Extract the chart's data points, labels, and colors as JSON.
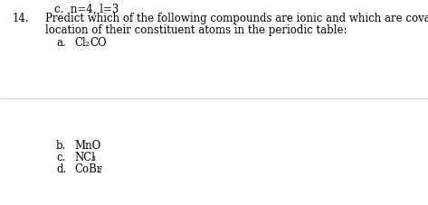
{
  "bg_color": "#ffffff",
  "line_color": "#d0d0d0",
  "text_color": "#000000",
  "top_partial": "c.  n=4, l=3",
  "number": "14.",
  "q_line1": "Predict which of the following compounds are ionic and which are covalent, based on the",
  "q_line2": "location of their constituent atoms in the periodic table:",
  "item_a_label": "a.",
  "item_a_pre": "Cl",
  "item_a_sub": "2",
  "item_a_post": "CO",
  "item_b_label": "b.",
  "item_b_text": "MnO",
  "item_c_label": "c.",
  "item_c_pre": "NCl",
  "item_c_sub": "3",
  "item_d_label": "d.",
  "item_d_pre": "CoBr",
  "item_d_sub": "2",
  "fs": 8.5,
  "fs_sub": 5.5,
  "fig_width": 4.73,
  "fig_height": 2.28,
  "dpi": 100
}
